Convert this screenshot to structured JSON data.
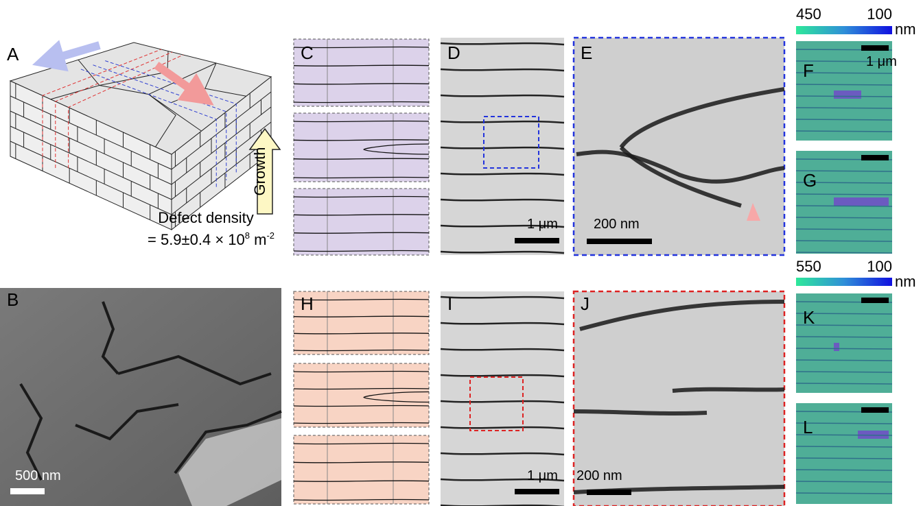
{
  "panels": {
    "A": {
      "label": "A",
      "arrow_label": "Growth",
      "caption": "Defect density",
      "value_parts": [
        "= 5.9±0.4 × 10",
        "8",
        " m",
        "-2"
      ]
    },
    "B": {
      "label": "B",
      "scale_bar": "500 nm"
    },
    "C": {
      "label": "C"
    },
    "D": {
      "label": "D",
      "scale_bar": "1 μm"
    },
    "E": {
      "label": "E",
      "scale_bar": "200 nm"
    },
    "F": {
      "label": "F",
      "scale_bar": "1 μm"
    },
    "G": {
      "label": "G"
    },
    "H": {
      "label": "H"
    },
    "I": {
      "label": "I",
      "scale_bar": "1 μm"
    },
    "J": {
      "label": "J",
      "scale_bar": "200 nm"
    },
    "K": {
      "label": "K"
    },
    "L": {
      "label": "L"
    }
  },
  "colorbars": [
    {
      "min_label": "450",
      "max_label": "100",
      "unit": "nm"
    },
    {
      "min_label": "550",
      "max_label": "100",
      "unit": "nm"
    }
  ]
}
